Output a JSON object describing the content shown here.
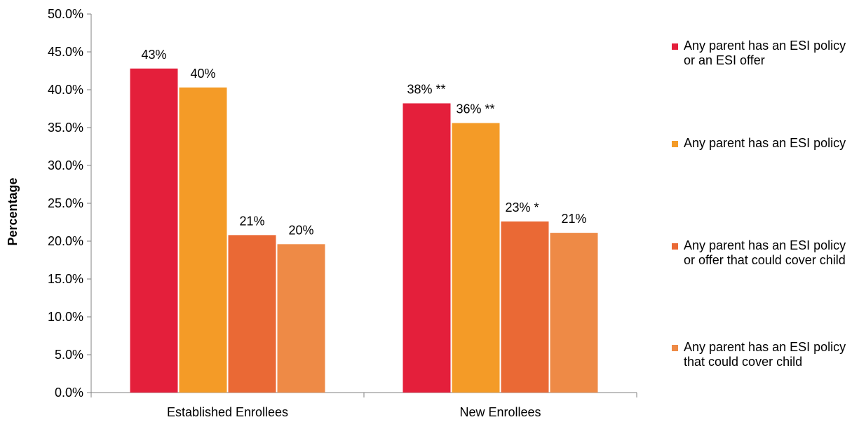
{
  "chart_data": {
    "type": "bar",
    "categories": [
      "Established Enrollees",
      "New Enrollees"
    ],
    "series": [
      {
        "name": "Any parent has an ESI policy or an ESI offer",
        "values": [
          42.8,
          38.2
        ],
        "labels": [
          "43%",
          "38% **"
        ],
        "color": "#e41f3b"
      },
      {
        "name": "Any parent has an ESI policy",
        "values": [
          40.3,
          35.6
        ],
        "labels": [
          "40%",
          "36% **"
        ],
        "color": "#f49b27"
      },
      {
        "name": "Any parent has an ESI policy or offer that could cover child",
        "values": [
          20.8,
          22.6
        ],
        "labels": [
          "21%",
          "23% *"
        ],
        "color": "#ea6935"
      },
      {
        "name": "Any parent has an ESI policy that could cover child",
        "values": [
          19.6,
          21.1
        ],
        "labels": [
          "20%",
          "21%"
        ],
        "color": "#ee8a46"
      }
    ],
    "ylabel": "Percentage",
    "xlabel": "",
    "ylim": [
      0,
      50
    ],
    "yticks": [
      "0.0%",
      "5.0%",
      "10.0%",
      "15.0%",
      "20.0%",
      "25.0%",
      "30.0%",
      "35.0%",
      "40.0%",
      "45.0%",
      "50.0%"
    ],
    "grid": false,
    "legend_position": "right"
  }
}
